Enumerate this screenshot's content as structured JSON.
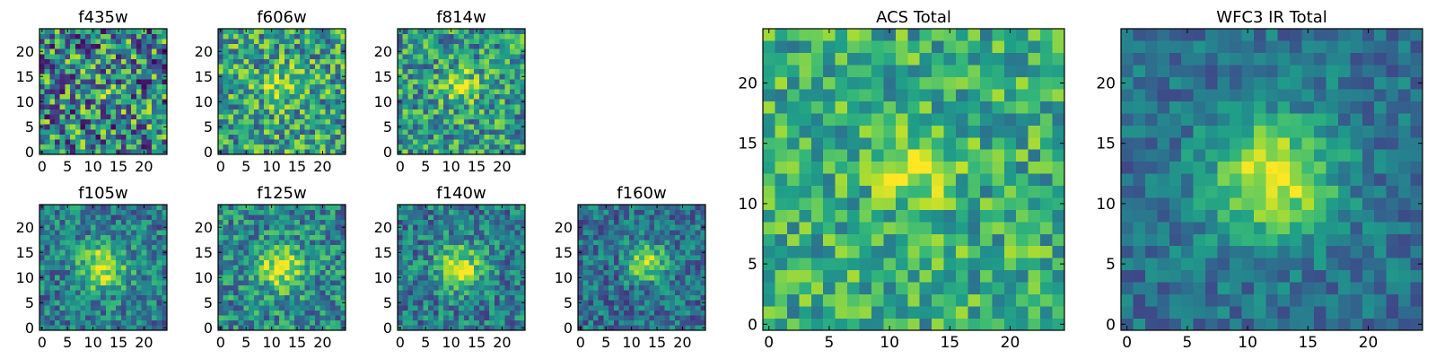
{
  "chart_data": [
    {
      "type": "heatmap",
      "title": "f435w",
      "xlim": [
        0,
        24
      ],
      "ylim": [
        0,
        24
      ],
      "xticks": [
        0,
        5,
        10,
        15,
        20
      ],
      "yticks": [
        0,
        5,
        10,
        15,
        20
      ],
      "colormap": "viridis",
      "source_center": [
        12,
        13
      ],
      "peak_strength": 0.15,
      "source_width": 3.0,
      "noise_level": 1.0,
      "noise_offset": 0.05,
      "seed": 11
    },
    {
      "type": "heatmap",
      "title": "f606w",
      "xlim": [
        0,
        24
      ],
      "ylim": [
        0,
        24
      ],
      "xticks": [
        0,
        5,
        10,
        15,
        20
      ],
      "yticks": [
        0,
        5,
        10,
        15,
        20
      ],
      "colormap": "viridis",
      "source_center": [
        12,
        13
      ],
      "peak_strength": 0.45,
      "source_width": 2.6,
      "noise_level": 0.75,
      "noise_offset": 0.15,
      "seed": 23
    },
    {
      "type": "heatmap",
      "title": "f814w",
      "xlim": [
        0,
        24
      ],
      "ylim": [
        0,
        24
      ],
      "xticks": [
        0,
        5,
        10,
        15,
        20
      ],
      "yticks": [
        0,
        5,
        10,
        15,
        20
      ],
      "colormap": "viridis",
      "source_center": [
        12,
        13
      ],
      "peak_strength": 0.55,
      "source_width": 2.5,
      "noise_level": 0.7,
      "noise_offset": 0.12,
      "seed": 37
    },
    {
      "type": "heatmap",
      "title": "f105w",
      "xlim": [
        0,
        24
      ],
      "ylim": [
        0,
        24
      ],
      "xticks": [
        0,
        5,
        10,
        15,
        20
      ],
      "yticks": [
        0,
        5,
        10,
        15,
        20
      ],
      "colormap": "viridis",
      "source_center": [
        12,
        12
      ],
      "peak_strength": 0.85,
      "source_width": 3.2,
      "noise_level": 0.55,
      "noise_offset": 0.0,
      "seed": 41
    },
    {
      "type": "heatmap",
      "title": "f125w",
      "xlim": [
        0,
        24
      ],
      "ylim": [
        0,
        24
      ],
      "xticks": [
        0,
        5,
        10,
        15,
        20
      ],
      "yticks": [
        0,
        5,
        10,
        15,
        20
      ],
      "colormap": "viridis",
      "source_center": [
        12,
        12
      ],
      "peak_strength": 0.8,
      "source_width": 3.2,
      "noise_level": 0.6,
      "noise_offset": 0.05,
      "seed": 53
    },
    {
      "type": "heatmap",
      "title": "f140w",
      "xlim": [
        0,
        24
      ],
      "ylim": [
        0,
        24
      ],
      "xticks": [
        0,
        5,
        10,
        15,
        20
      ],
      "yticks": [
        0,
        5,
        10,
        15,
        20
      ],
      "colormap": "viridis",
      "source_center": [
        12,
        12
      ],
      "peak_strength": 0.85,
      "source_width": 3.0,
      "noise_level": 0.55,
      "noise_offset": 0.0,
      "seed": 67
    },
    {
      "type": "heatmap",
      "title": "f160w",
      "xlim": [
        0,
        24
      ],
      "ylim": [
        0,
        24
      ],
      "xticks": [
        0,
        5,
        10,
        15,
        20
      ],
      "yticks": [
        0,
        5,
        10,
        15,
        20
      ],
      "colormap": "viridis",
      "source_center": [
        13,
        13
      ],
      "peak_strength": 0.95,
      "source_width": 2.5,
      "noise_level": 0.5,
      "noise_offset": -0.05,
      "seed": 79
    },
    {
      "type": "heatmap",
      "title": "ACS Total",
      "xlim": [
        0,
        24
      ],
      "ylim": [
        0,
        24
      ],
      "xticks": [
        0,
        5,
        10,
        15,
        20
      ],
      "yticks": [
        0,
        5,
        10,
        15,
        20
      ],
      "colormap": "viridis",
      "source_center": [
        12,
        13
      ],
      "peak_strength": 0.55,
      "source_width": 2.2,
      "noise_level": 0.55,
      "noise_offset": 0.2,
      "seed": 97
    },
    {
      "type": "heatmap",
      "title": "WFC3 IR Total",
      "xlim": [
        0,
        24
      ],
      "ylim": [
        0,
        24
      ],
      "xticks": [
        0,
        5,
        10,
        15,
        20
      ],
      "yticks": [
        0,
        5,
        10,
        15,
        20
      ],
      "colormap": "viridis",
      "source_center": [
        12,
        12
      ],
      "peak_strength": 1.0,
      "source_width": 3.6,
      "noise_level": 0.35,
      "noise_offset": -0.05,
      "seed": 131
    }
  ],
  "colors": {
    "viridis": [
      "#440154",
      "#482878",
      "#3e4989",
      "#31688e",
      "#26828e",
      "#1f9e89",
      "#35b779",
      "#6ece58",
      "#b5de2b",
      "#fde725"
    ],
    "axis": "#000000"
  }
}
